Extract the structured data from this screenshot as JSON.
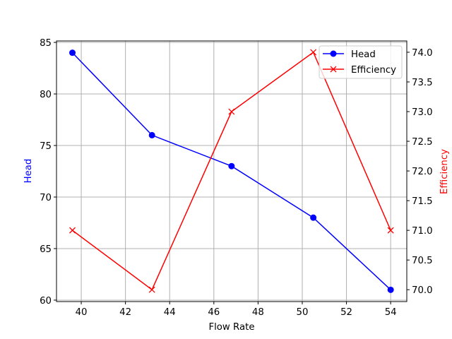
{
  "chart_data": {
    "type": "line",
    "title": "",
    "xlabel": "Flow Rate",
    "ylabel": "Head",
    "ylabel_right": "Efficiency",
    "x": [
      39.6,
      43.2,
      46.8,
      50.5,
      54.0
    ],
    "series": [
      {
        "name": "Head",
        "axis": "left",
        "color": "#0000ff",
        "marker": "o",
        "values": [
          84,
          76,
          73,
          68,
          61
        ]
      },
      {
        "name": "Efficiency",
        "axis": "right",
        "color": "#ff0000",
        "marker": "x",
        "values": [
          71.0,
          70.0,
          73.0,
          74.0,
          71.0
        ]
      }
    ],
    "xlim": [
      38.88,
      54.73
    ],
    "ylim": [
      59.86,
      85.14
    ],
    "ylim_right": [
      69.8,
      74.19
    ],
    "xticks": [
      "40",
      "42",
      "44",
      "46",
      "48",
      "50",
      "52",
      "54"
    ],
    "yticks": [
      "60",
      "65",
      "70",
      "75",
      "80",
      "85"
    ],
    "yticks_right": [
      "70.0",
      "70.5",
      "71.0",
      "71.5",
      "72.0",
      "72.5",
      "73.0",
      "73.5",
      "74.0"
    ],
    "grid": true,
    "legend_position": "upper right",
    "legend": [
      "Head",
      "Efficiency"
    ]
  }
}
